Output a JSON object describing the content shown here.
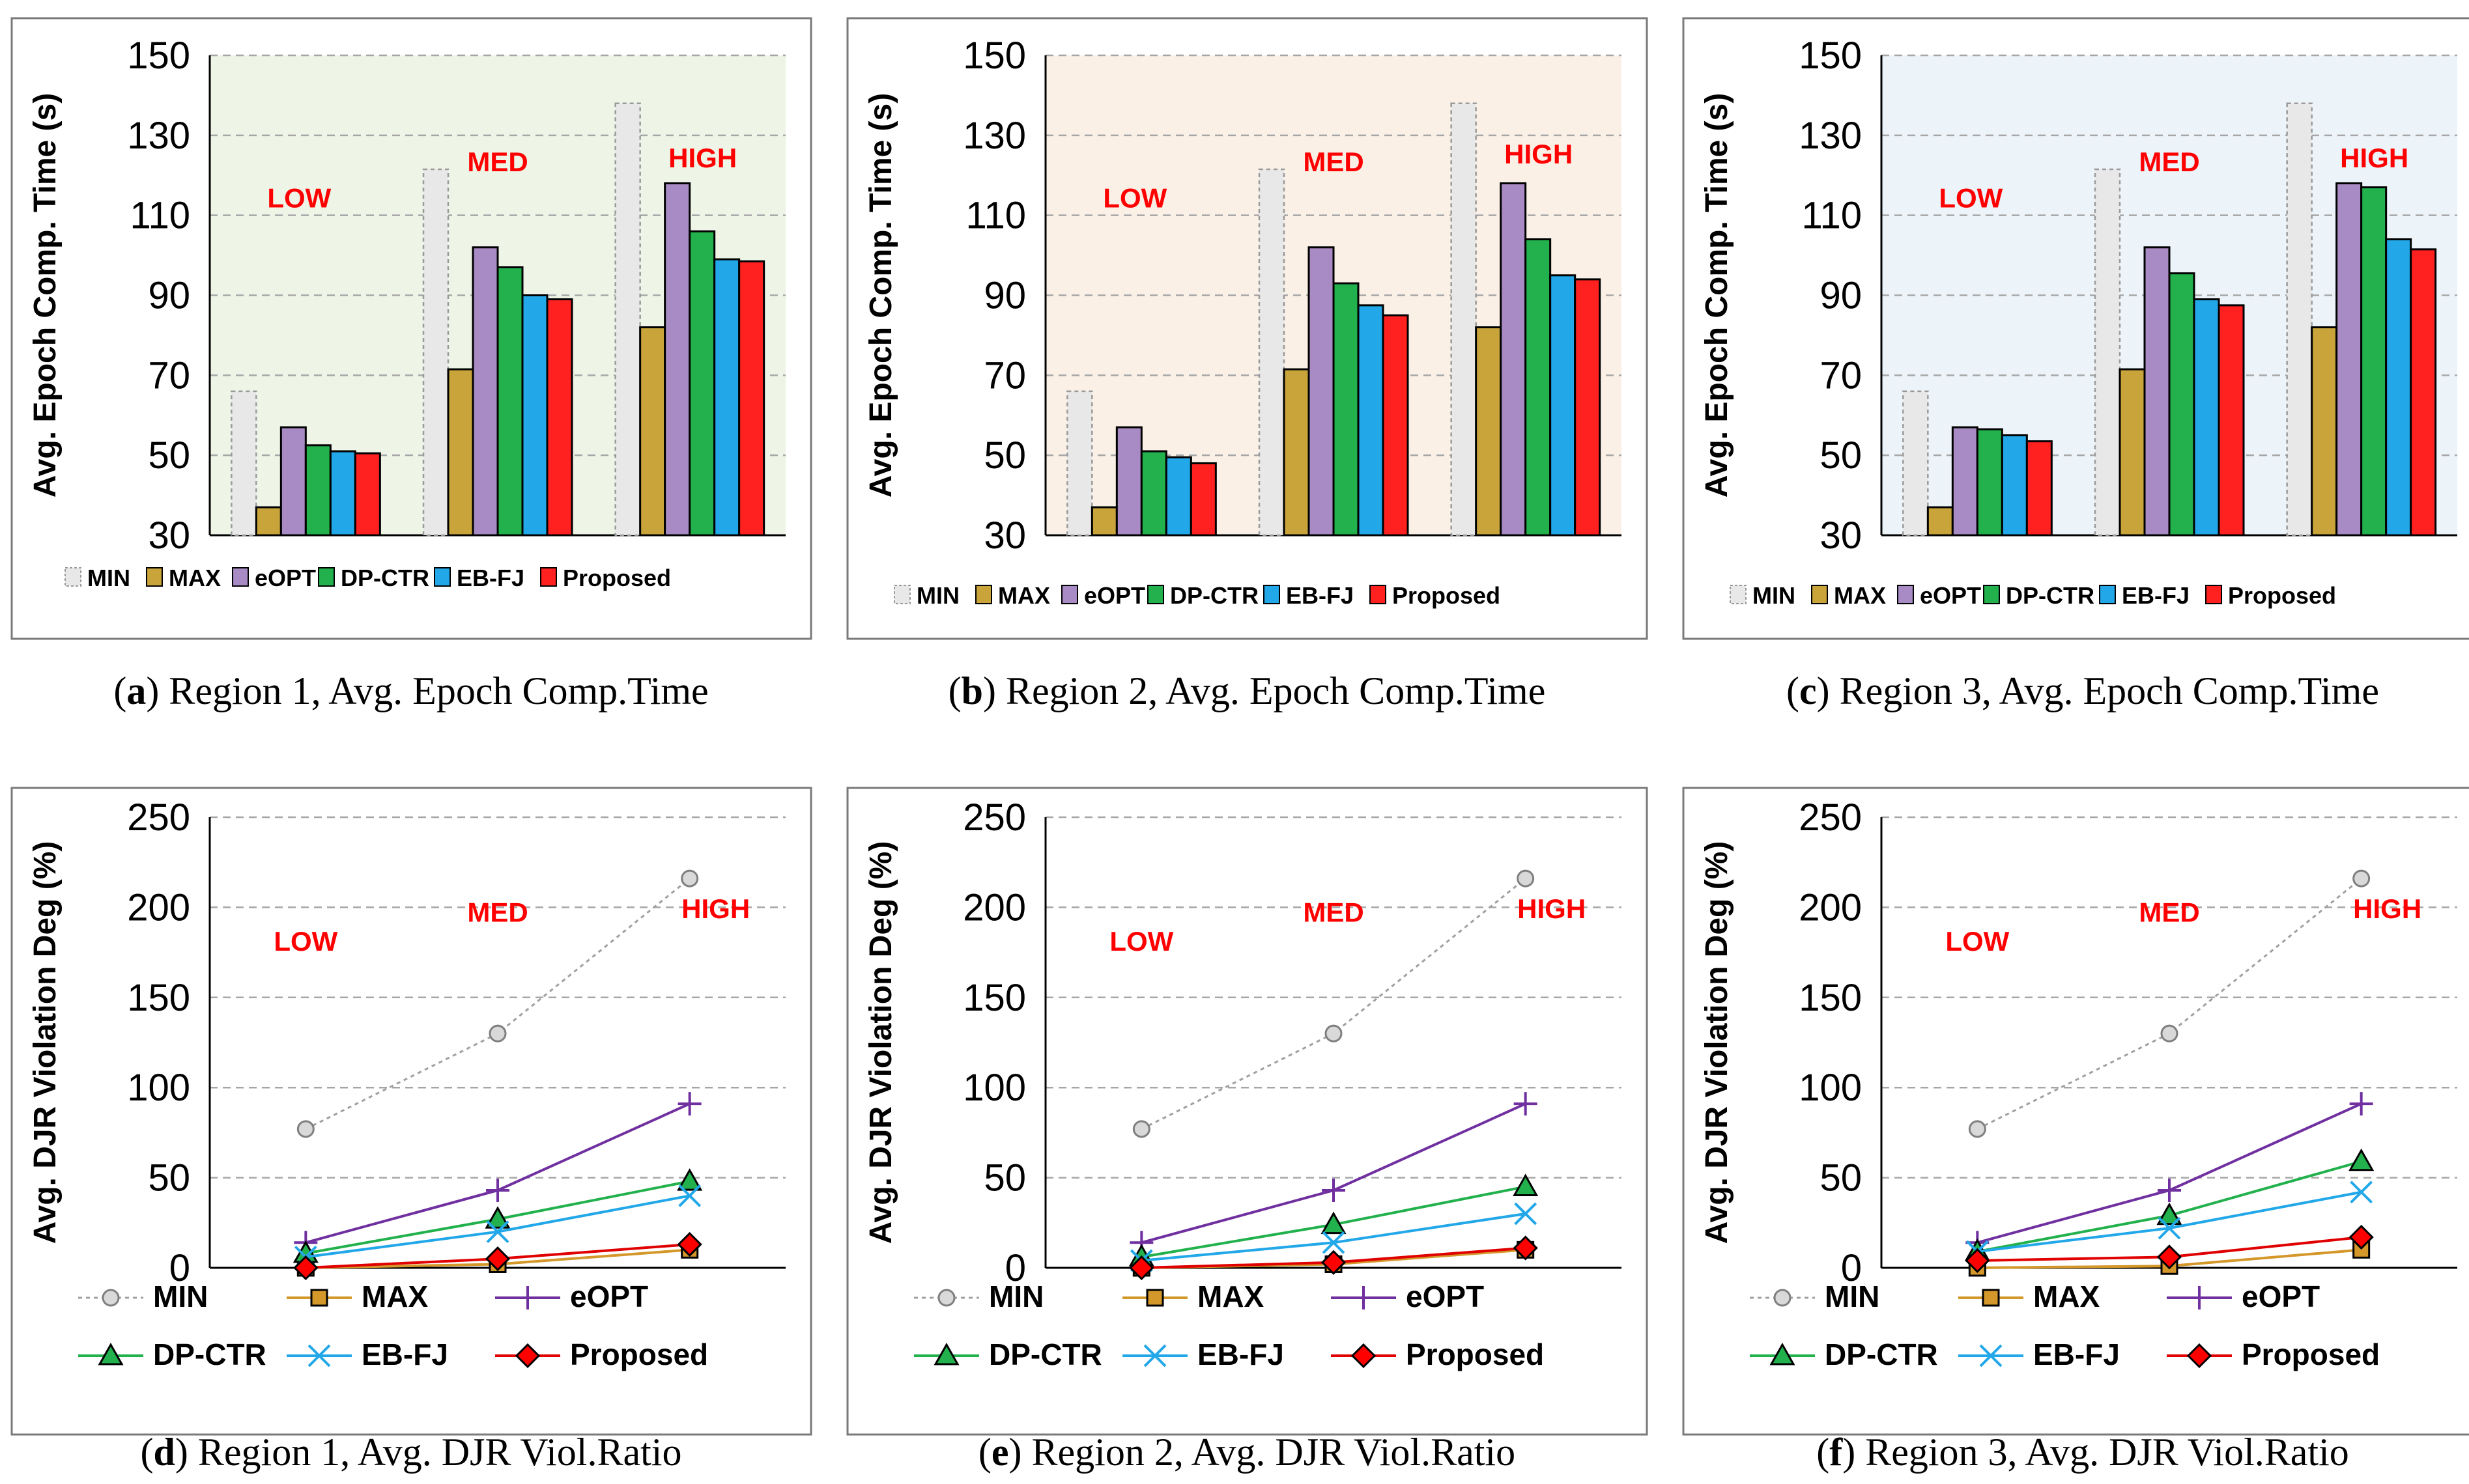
{
  "colors": {
    "MIN": "#e8e8e8",
    "MAX": "#c9a43a",
    "eOPT": "#a88bc4",
    "DP-CTR": "#22b14c",
    "EB-FJ": "#22a7e8",
    "Proposed": "#ff2020",
    "bg_region1": "#eef5e7",
    "bg_region2": "#fbf0e6",
    "bg_region3": "#ecf3f9",
    "MIN_line": "#a0a0a0",
    "MAX_line": "#d4982a",
    "eOPT_line": "#7030a0",
    "DP-CTR_line": "#22b14c",
    "EB-FJ_line": "#22a7e8",
    "Proposed_line": "#e00000"
  },
  "chart_data": [
    {
      "type": "bar",
      "panel_id": "a",
      "caption_letter": "a",
      "caption_text": "Region 1, Avg. Epoch Comp.Time",
      "ylabel": "Avg. Epoch Comp. Time (s)",
      "ylim": [
        30,
        150
      ],
      "yticks": [
        "30",
        "50",
        "70",
        "90",
        "110",
        "130",
        "150"
      ],
      "categories": [
        "LOW",
        "MED",
        "HIGH"
      ],
      "series": [
        {
          "name": "MIN",
          "values": [
            66,
            121.5,
            138
          ]
        },
        {
          "name": "MAX",
          "values": [
            37,
            71.5,
            82
          ]
        },
        {
          "name": "eOPT",
          "values": [
            57,
            102,
            118
          ]
        },
        {
          "name": "DP-CTR",
          "values": [
            52.5,
            97,
            106
          ]
        },
        {
          "name": "EB-FJ",
          "values": [
            51,
            90,
            99
          ]
        },
        {
          "name": "Proposed",
          "values": [
            50.5,
            89,
            98.5
          ]
        }
      ]
    },
    {
      "type": "bar",
      "panel_id": "b",
      "caption_letter": "b",
      "caption_text": "Region 2, Avg. Epoch Comp.Time",
      "ylabel": "Avg. Epoch Comp. Time (s)",
      "ylim": [
        30,
        150
      ],
      "yticks": [
        "30",
        "50",
        "70",
        "90",
        "110",
        "130",
        "150"
      ],
      "categories": [
        "LOW",
        "MED",
        "HIGH"
      ],
      "series": [
        {
          "name": "MIN",
          "values": [
            66,
            121.5,
            138
          ]
        },
        {
          "name": "MAX",
          "values": [
            37,
            71.5,
            82
          ]
        },
        {
          "name": "eOPT",
          "values": [
            57,
            102,
            118
          ]
        },
        {
          "name": "DP-CTR",
          "values": [
            51,
            93,
            104
          ]
        },
        {
          "name": "EB-FJ",
          "values": [
            49.5,
            87.5,
            95
          ]
        },
        {
          "name": "Proposed",
          "values": [
            48,
            85,
            94
          ]
        }
      ]
    },
    {
      "type": "bar",
      "panel_id": "c",
      "caption_letter": "c",
      "caption_text": "Region 3, Avg. Epoch Comp.Time",
      "ylabel": "Avg. Epoch Comp. Time (s)",
      "ylim": [
        30,
        150
      ],
      "yticks": [
        "30",
        "50",
        "70",
        "90",
        "110",
        "130",
        "150"
      ],
      "categories": [
        "LOW",
        "MED",
        "HIGH"
      ],
      "series": [
        {
          "name": "MIN",
          "values": [
            66,
            121.5,
            138
          ]
        },
        {
          "name": "MAX",
          "values": [
            37,
            71.5,
            82
          ]
        },
        {
          "name": "eOPT",
          "values": [
            57,
            102,
            118
          ]
        },
        {
          "name": "DP-CTR",
          "values": [
            56.5,
            95.5,
            117
          ]
        },
        {
          "name": "EB-FJ",
          "values": [
            55,
            89,
            104
          ]
        },
        {
          "name": "Proposed",
          "values": [
            53.5,
            87.5,
            101.5
          ]
        }
      ]
    },
    {
      "type": "line",
      "panel_id": "d",
      "caption_letter": "d",
      "caption_text": "Region 1, Avg. DJR Viol.Ratio",
      "ylabel": "Avg. DJR Violation Deg (%)",
      "ylim": [
        0,
        250
      ],
      "yticks": [
        "0",
        "50",
        "100",
        "150",
        "200",
        "250"
      ],
      "categories": [
        "LOW",
        "MED",
        "HIGH"
      ],
      "series": [
        {
          "name": "MIN",
          "values": [
            77,
            130,
            216
          ]
        },
        {
          "name": "MAX",
          "values": [
            0,
            2,
            10
          ]
        },
        {
          "name": "eOPT",
          "values": [
            14,
            43,
            91
          ]
        },
        {
          "name": "DP-CTR",
          "values": [
            8,
            27,
            48
          ]
        },
        {
          "name": "EB-FJ",
          "values": [
            6,
            20,
            40
          ]
        },
        {
          "name": "Proposed",
          "values": [
            0,
            5,
            13
          ]
        }
      ]
    },
    {
      "type": "line",
      "panel_id": "e",
      "caption_letter": "e",
      "caption_text": "Region 2, Avg. DJR Viol.Ratio",
      "ylabel": "Avg. DJR Violation Deg (%)",
      "ylim": [
        0,
        250
      ],
      "yticks": [
        "0",
        "50",
        "100",
        "150",
        "200",
        "250"
      ],
      "categories": [
        "LOW",
        "MED",
        "HIGH"
      ],
      "series": [
        {
          "name": "MIN",
          "values": [
            77,
            130,
            216
          ]
        },
        {
          "name": "MAX",
          "values": [
            0,
            2,
            10
          ]
        },
        {
          "name": "eOPT",
          "values": [
            14,
            43,
            91
          ]
        },
        {
          "name": "DP-CTR",
          "values": [
            6,
            24,
            45
          ]
        },
        {
          "name": "EB-FJ",
          "values": [
            4,
            14,
            30
          ]
        },
        {
          "name": "Proposed",
          "values": [
            0,
            3,
            11
          ]
        }
      ]
    },
    {
      "type": "line",
      "panel_id": "f",
      "caption_letter": "f",
      "caption_text": "Region 3, Avg. DJR Viol.Ratio",
      "ylabel": "Avg. DJR Violation Deg (%)",
      "ylim": [
        0,
        250
      ],
      "yticks": [
        "0",
        "50",
        "100",
        "150",
        "200",
        "250"
      ],
      "categories": [
        "LOW",
        "MED",
        "HIGH"
      ],
      "series": [
        {
          "name": "MIN",
          "values": [
            77,
            130,
            216
          ]
        },
        {
          "name": "MAX",
          "values": [
            0,
            1,
            10
          ]
        },
        {
          "name": "eOPT",
          "values": [
            14,
            43,
            91
          ]
        },
        {
          "name": "DP-CTR",
          "values": [
            9,
            29,
            59
          ]
        },
        {
          "name": "EB-FJ",
          "values": [
            9,
            22,
            42
          ]
        },
        {
          "name": "Proposed",
          "values": [
            4,
            6,
            17
          ]
        }
      ]
    }
  ]
}
